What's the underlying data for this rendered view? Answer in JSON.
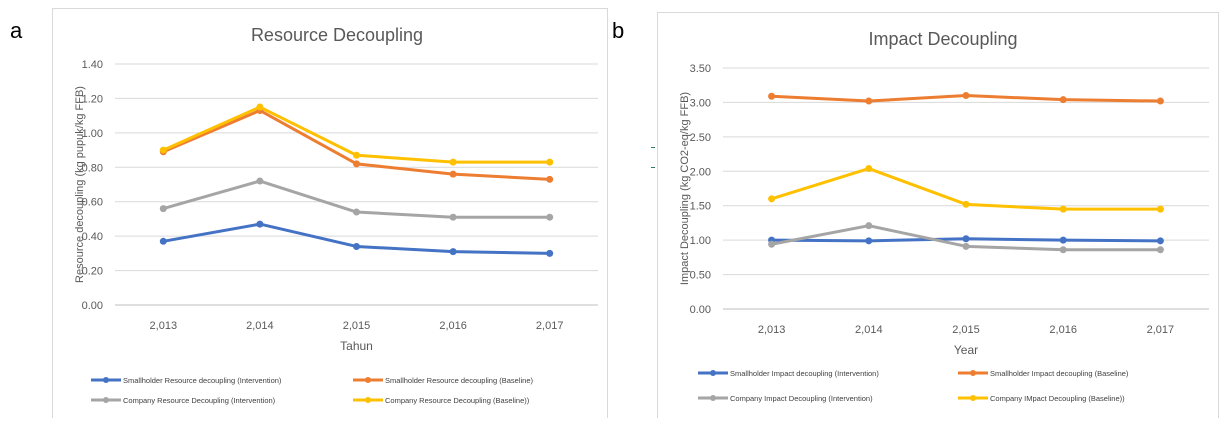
{
  "panel_labels": [
    "a",
    "b"
  ],
  "chart_data": [
    {
      "type": "line",
      "title": "Resource Decoupling",
      "xlabel": "Tahun",
      "ylabel": "Resource decoupling (kg pupuk/kg FFB)",
      "categories": [
        "2,013",
        "2,014",
        "2,015",
        "2,016",
        "2,017"
      ],
      "ylim": [
        0,
        1.4
      ],
      "yticks": [
        "0.00",
        "0.20",
        "0.40",
        "0.60",
        "0.80",
        "1.00",
        "1.20",
        "1.40"
      ],
      "grid": true,
      "legend_position": "bottom",
      "series": [
        {
          "name": "Smallholder Resource decoupling (Intervention)",
          "color": "#4472c4",
          "values": [
            0.37,
            0.47,
            0.34,
            0.31,
            0.3
          ]
        },
        {
          "name": "Smallholder Resource decoupling (Baseline)",
          "color": "#ed7d31",
          "values": [
            0.89,
            1.13,
            0.82,
            0.76,
            0.73
          ]
        },
        {
          "name": "Company Resource Decoupling (Intervention)",
          "color": "#a5a5a5",
          "values": [
            0.56,
            0.72,
            0.54,
            0.51,
            0.51
          ]
        },
        {
          "name": "Company Resource Decoupling (Baseline))",
          "color": "#ffc000",
          "values": [
            0.9,
            1.15,
            0.87,
            0.83,
            0.83
          ]
        }
      ]
    },
    {
      "type": "line",
      "title": "Impact Decoupling",
      "xlabel": "Year",
      "ylabel": "Impact Decoupling (kg CO2-eq/kg FFB)",
      "categories": [
        "2,013",
        "2,014",
        "2,015",
        "2,016",
        "2,017"
      ],
      "ylim": [
        0,
        3.5
      ],
      "yticks": [
        "0.00",
        "0.50",
        "1.00",
        "1.50",
        "2.00",
        "2.50",
        "3.00",
        "3.50"
      ],
      "grid": true,
      "legend_position": "bottom",
      "series": [
        {
          "name": "Smallholder Impact decoupling (Intervention)",
          "color": "#4472c4",
          "values": [
            1.0,
            0.99,
            1.02,
            1.0,
            0.99
          ]
        },
        {
          "name": "Smallholder Impact decoupling (Baseline)",
          "color": "#ed7d31",
          "values": [
            3.09,
            3.02,
            3.1,
            3.04,
            3.02
          ]
        },
        {
          "name": "Company Impact Decoupling (Intervention)",
          "color": "#a5a5a5",
          "values": [
            0.94,
            1.21,
            0.91,
            0.86,
            0.86
          ]
        },
        {
          "name": "Company IMpact Decoupling (Baseline))",
          "color": "#ffc000",
          "values": [
            1.6,
            2.04,
            1.52,
            1.45,
            1.45
          ]
        }
      ]
    }
  ]
}
